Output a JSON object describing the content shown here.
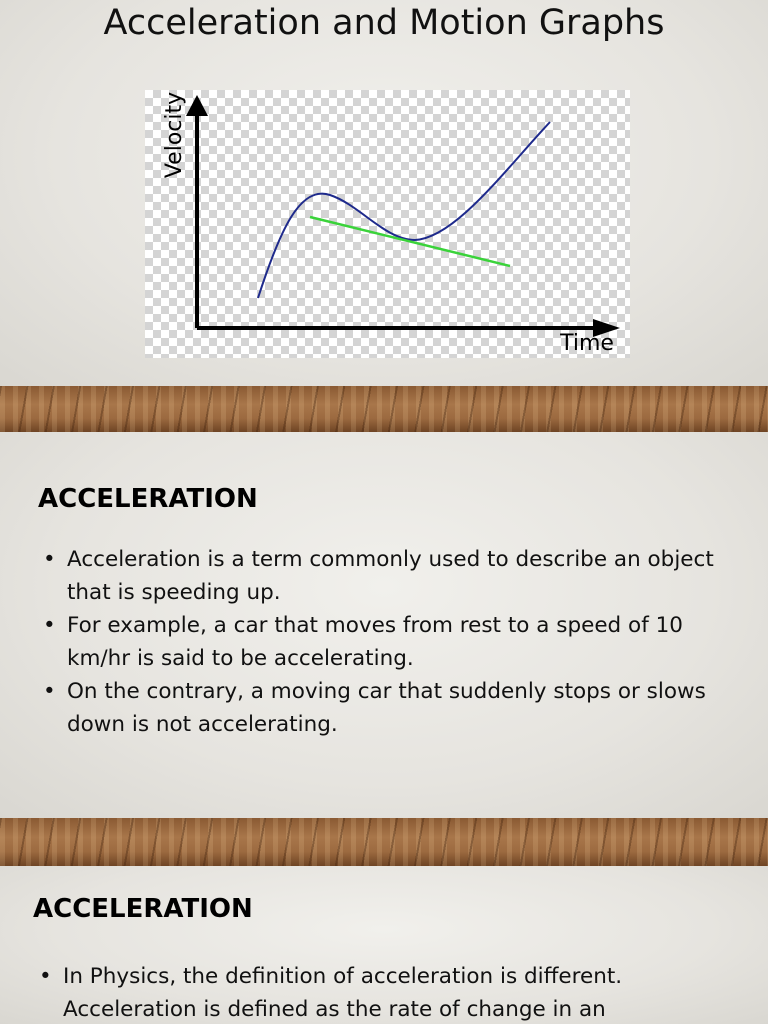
{
  "slides": [
    {
      "title": "Acceleration and Motion Graphs",
      "figure": {
        "y_axis_label": "Velocity",
        "x_axis_label": "Time"
      }
    },
    {
      "heading": "ACCELERATION",
      "bullets": [
        "Acceleration is a term commonly used to describe an object that is speeding up.",
        "For example, a car that moves from rest to a speed of 10 km/hr is said to be accelerating.",
        "On the contrary, a moving car that suddenly stops or slows down is not accelerating."
      ]
    },
    {
      "heading": "ACCELERATION",
      "bullets": [
        "In Physics, the definition of acceleration is different. Acceleration is defined as the rate of change in an"
      ]
    }
  ]
}
